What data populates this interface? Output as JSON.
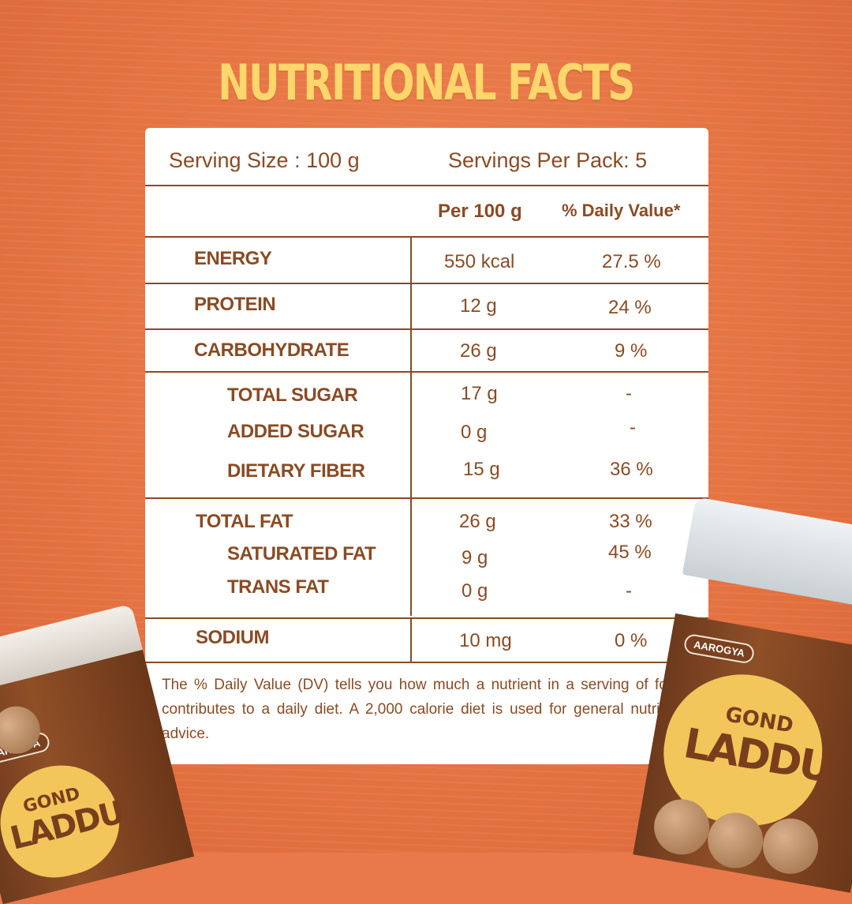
{
  "title": "NUTRITIONAL FACTS",
  "header": {
    "serving_size": "Serving Size : 100 g",
    "servings_per_pack": "Servings Per Pack: 5"
  },
  "columns": {
    "per": "Per 100 g",
    "dv": "% Daily Value*"
  },
  "nutrients": {
    "energy": {
      "name": "ENERGY",
      "value": "550 kcal",
      "dv": "27.5 %"
    },
    "protein": {
      "name": "PROTEIN",
      "value": "12 g",
      "dv": "24 %"
    },
    "carbohydrate": {
      "name": "CARBOHYDRATE",
      "value": "26 g",
      "dv": "9 %"
    },
    "total_sugar": {
      "name": "TOTAL SUGAR",
      "value": "17 g",
      "dv": "-"
    },
    "added_sugar": {
      "name": "ADDED SUGAR",
      "value": "0 g",
      "dv": "-"
    },
    "dietary_fiber": {
      "name": "DIETARY FIBER",
      "value": "15 g",
      "dv": "36 %"
    },
    "total_fat": {
      "name": "TOTAL FAT",
      "value": "26 g",
      "dv": "33 %"
    },
    "saturated_fat": {
      "name": "SATURATED FAT",
      "value": "9 g",
      "dv": "45 %"
    },
    "trans_fat": {
      "name": "TRANS FAT",
      "value": "0 g",
      "dv": "-"
    },
    "sodium": {
      "name": "SODIUM",
      "value": "10 mg",
      "dv": "0 %"
    }
  },
  "footnote": "The % Daily Value (DV) tells you how much a nutrient in a serving of food contributes to a daily diet. A 2,000 calorie diet is used for general nutrition advice.",
  "product": {
    "brand": "AAROGYA",
    "name_line1": "GOND",
    "name_line2": "LADDU"
  },
  "colors": {
    "background": "#e9784a",
    "title": "#ffd66b",
    "text": "#8a4b23",
    "card": "#ffffff"
  }
}
